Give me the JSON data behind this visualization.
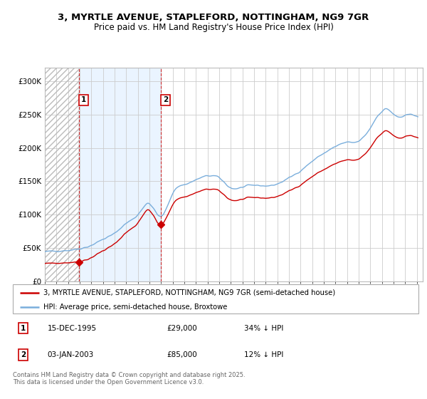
{
  "title_line1": "3, MYRTLE AVENUE, STAPLEFORD, NOTTINGHAM, NG9 7GR",
  "title_line2": "Price paid vs. HM Land Registry's House Price Index (HPI)",
  "legend_line1": "3, MYRTLE AVENUE, STAPLEFORD, NOTTINGHAM, NG9 7GR (semi-detached house)",
  "legend_line2": "HPI: Average price, semi-detached house, Broxtowe",
  "annotation1_label": "1",
  "annotation1_date": "15-DEC-1995",
  "annotation1_price": "£29,000",
  "annotation1_hpi": "34% ↓ HPI",
  "annotation2_label": "2",
  "annotation2_date": "03-JAN-2003",
  "annotation2_price": "£85,000",
  "annotation2_hpi": "12% ↓ HPI",
  "footer": "Contains HM Land Registry data © Crown copyright and database right 2025.\nThis data is licensed under the Open Government Licence v3.0.",
  "sale1_year": 1995.958,
  "sale1_price": 29000,
  "sale2_year": 2003.0,
  "sale2_price": 85000,
  "hpi_color": "#7aaedc",
  "price_color": "#cc0000",
  "shade_color": "#ddeeff",
  "ylim_max": 320000,
  "ylim_min": 0,
  "xlim_min": 1993.0,
  "xlim_max": 2025.5
}
